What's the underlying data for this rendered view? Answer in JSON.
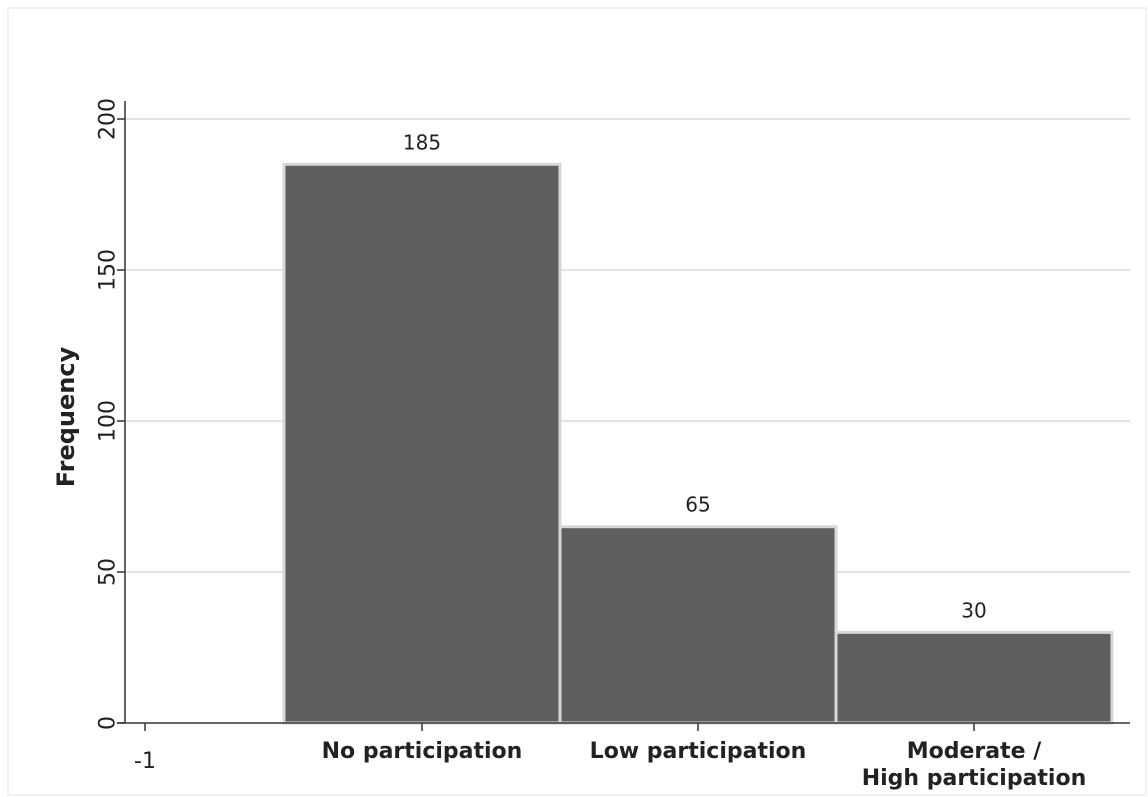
{
  "chart_data": {
    "type": "bar",
    "categories": [
      "No participation",
      "Low participation",
      "Moderate / High participation"
    ],
    "category_lines": [
      [
        "No participation"
      ],
      [
        "Low participation"
      ],
      [
        "Moderate /",
        "High participation"
      ]
    ],
    "values": [
      185,
      65,
      30
    ],
    "data_labels": [
      "185",
      "65",
      "30"
    ],
    "title": "",
    "xlabel": "",
    "ylabel": "Frequency",
    "ylim": [
      0,
      200
    ],
    "yticks": [
      0,
      50,
      100,
      150,
      200
    ],
    "xticks_numeric": [
      "-1"
    ],
    "grid": true,
    "colors": {
      "bar": "#5f5f60",
      "bar_edge": "#d8d8d8",
      "grid": "#e3e3e3"
    }
  }
}
